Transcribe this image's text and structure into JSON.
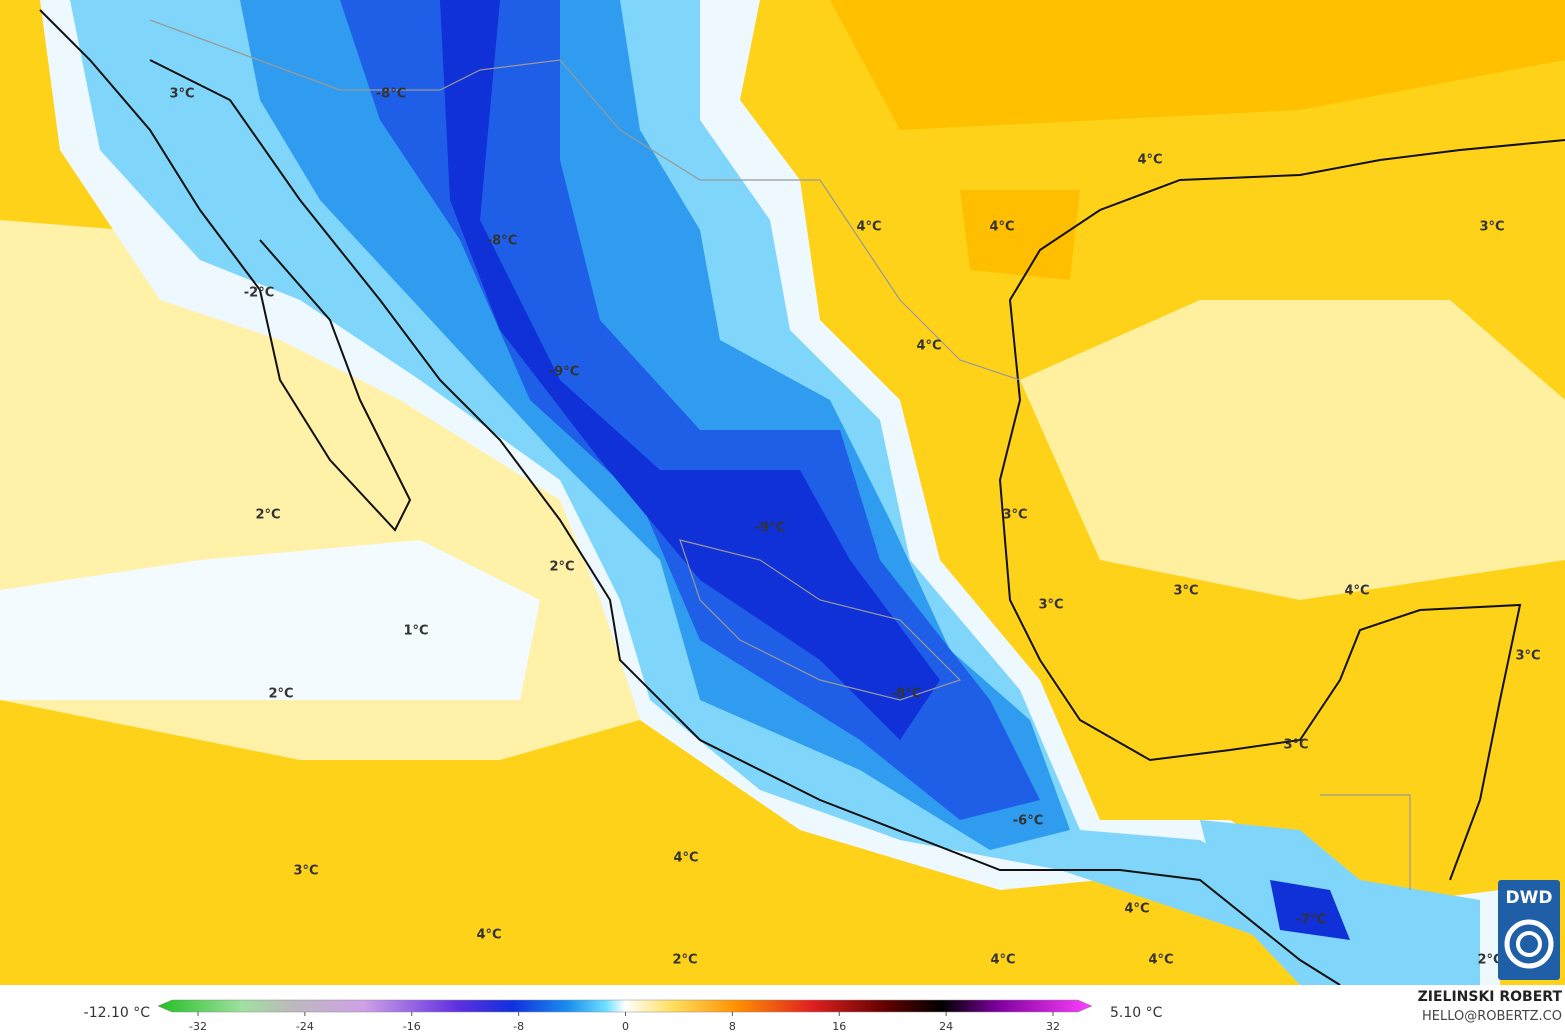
{
  "map": {
    "labels": [
      "3°C",
      "-8°C",
      "4°C",
      "-8°C",
      "4°C",
      "4°C",
      "3°C",
      "-2°C",
      "4°C",
      "-9°C",
      "2°C",
      "-9°C",
      "3°C",
      "2°C",
      "3°C",
      "3°C",
      "4°C",
      "1°C",
      "3°C",
      "2°C",
      "-8°C",
      "3°C",
      "-6°C",
      "4°C",
      "3°C",
      "4°C",
      "-7°C",
      "4°C",
      "2°C",
      "4°C",
      "4°C",
      "2°C"
    ]
  },
  "colorbar": {
    "min_label": "-12.10 °C",
    "max_label": "5.10 °C",
    "ticks": [
      -32,
      -24,
      -16,
      -8,
      0,
      8,
      16,
      24,
      32
    ]
  },
  "credit": {
    "author": "ZIELINSKI ROBERT",
    "email": "HELLO@ROBERTZ.CO"
  },
  "logo": "DWD"
}
